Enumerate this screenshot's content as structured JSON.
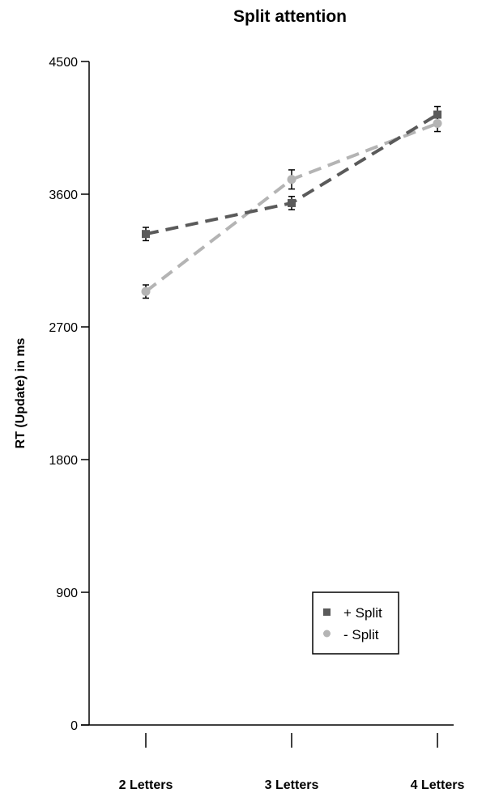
{
  "chart_data": {
    "type": "line",
    "title": "Split attention",
    "xlabel": "",
    "ylabel": "RT (Update) in ms",
    "categories": [
      "2 Letters",
      "3 Letters",
      "4 Letters"
    ],
    "ylim": [
      0,
      4500
    ],
    "yticks": [
      0,
      900,
      1800,
      2700,
      3600,
      4500
    ],
    "grid": false,
    "legend_position": "bottom-right",
    "series": [
      {
        "name": "+ Split",
        "marker": "square",
        "color": "#5a5a5a",
        "line_style": "dashed",
        "values": [
          3330,
          3540,
          4140
        ],
        "error": [
          45,
          45,
          55
        ]
      },
      {
        "name": "- Split",
        "marker": "circle",
        "color": "#b4b4b4",
        "line_style": "dashed",
        "values": [
          2940,
          3700,
          4080
        ],
        "error": [
          45,
          65,
          55
        ]
      }
    ]
  }
}
